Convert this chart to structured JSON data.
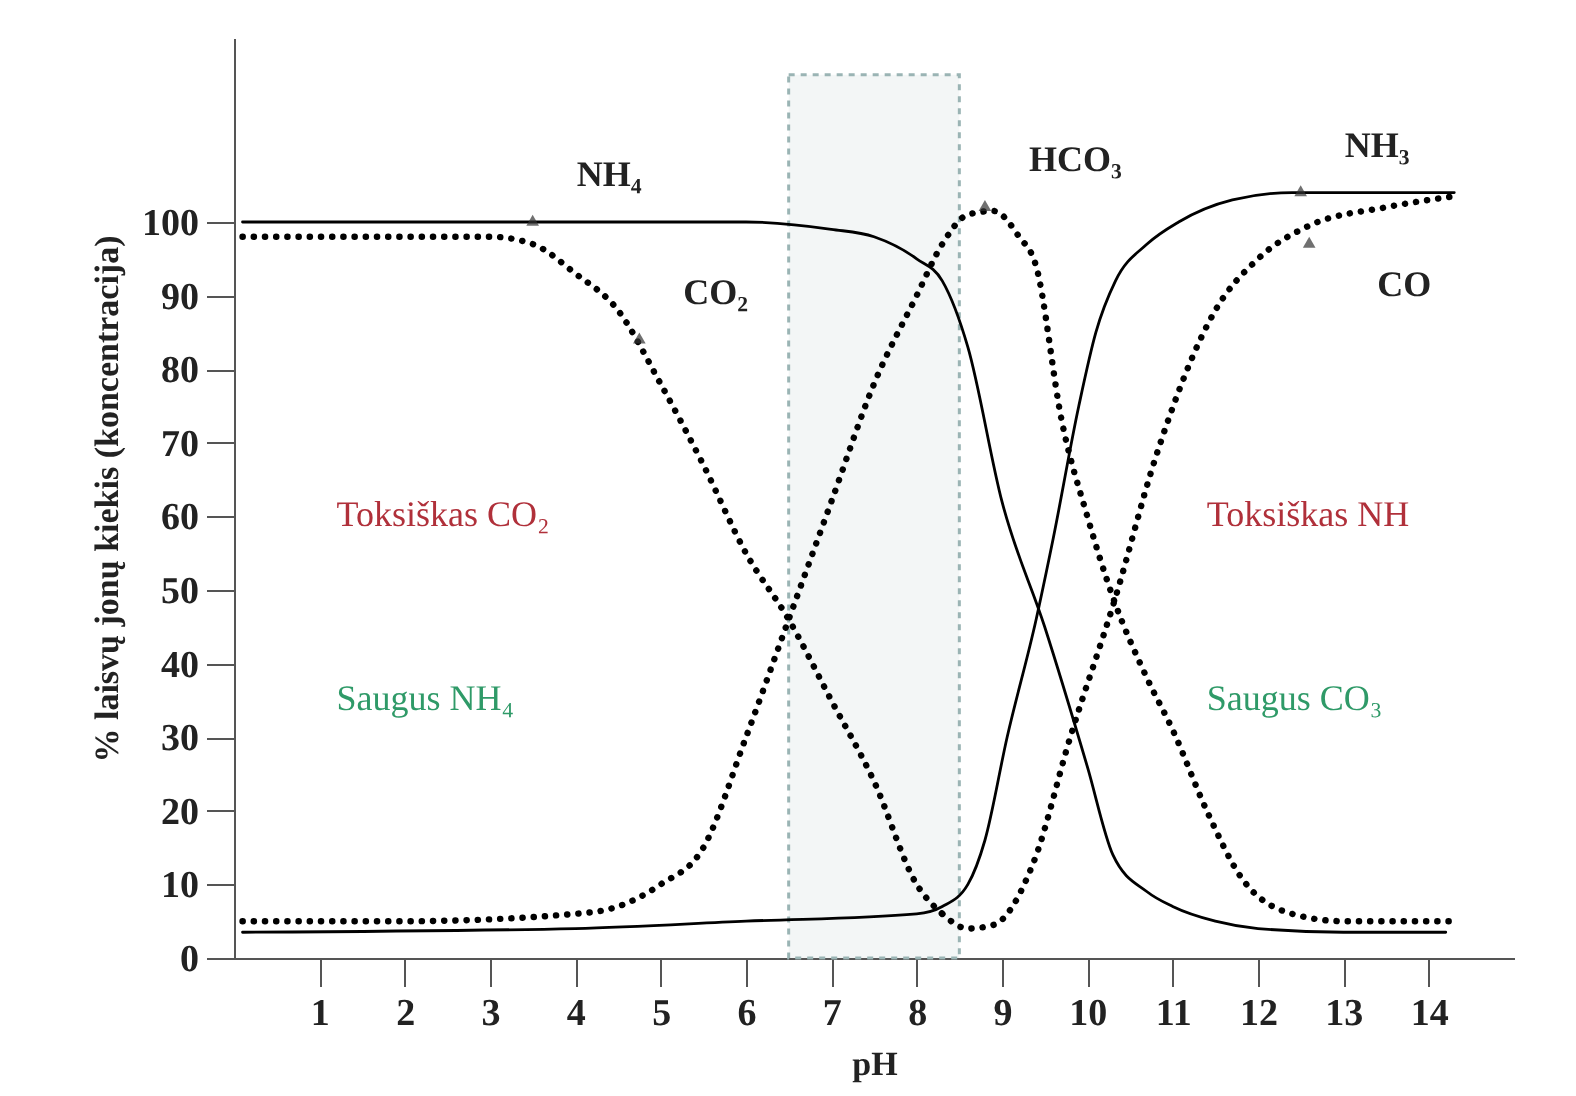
{
  "chart_data": {
    "type": "line",
    "xlabel": "pH",
    "ylabel": "% laisvų jonų kiekis (koncentracija)",
    "xlim": [
      0,
      15
    ],
    "ylim": [
      0,
      125
    ],
    "xticks": [
      1,
      2,
      3,
      4,
      5,
      6,
      7,
      8,
      9,
      10,
      11,
      12,
      13,
      14
    ],
    "yticks": [
      0,
      10,
      20,
      30,
      40,
      50,
      60,
      70,
      80,
      90,
      100
    ],
    "grid": false,
    "marker": "none",
    "series": [
      {
        "color": "#000000",
        "line_style": "solid",
        "x": [
          0.1,
          3,
          6,
          7,
          7.5,
          8,
          8.3,
          8.6,
          9,
          9.5,
          10,
          10.3,
          10.7,
          11,
          11.5,
          12,
          13,
          14.2
        ],
        "values": [
          100,
          100,
          100,
          99,
          98,
          95,
          92,
          83,
          62,
          45,
          26,
          14,
          9,
          7,
          5,
          4,
          3.5,
          3.5
        ]
      },
      {
        "color": "#000000",
        "line_style": "dotted",
        "x": [
          0.1,
          3,
          3.5,
          4,
          4.5,
          5,
          5.5,
          6,
          6.5,
          7,
          7.5,
          8,
          8.3
        ],
        "values": [
          98,
          98,
          97,
          93,
          88,
          78,
          67,
          55,
          46,
          35,
          24,
          10,
          6
        ]
      },
      {
        "color": "#000000",
        "line_style": "dotted",
        "x": [
          0.1,
          2,
          4,
          4.5,
          5,
          5.5,
          6,
          6.5,
          7,
          7.5,
          8,
          8.3,
          8.6,
          8.9,
          9.2,
          9.4,
          9.7,
          10,
          10.3,
          10.7,
          11,
          11.4,
          11.8,
          12.4,
          13,
          14.3
        ],
        "values": [
          5,
          5,
          6,
          7,
          10,
          15,
          30,
          46,
          62,
          78,
          90,
          97,
          101,
          101.5,
          98,
          94,
          73,
          60,
          49,
          38,
          31,
          20,
          11,
          6,
          5,
          5
        ]
      },
      {
        "color": "#000000",
        "line_style": "solid",
        "x": [
          0.1,
          4,
          6,
          8,
          8.3,
          8.6,
          8.8,
          9.06,
          9.4,
          9.6,
          9.9,
          10.1,
          10.33,
          10.7,
          11.07,
          11.7,
          12.4,
          14.3
        ],
        "values": [
          3.5,
          4,
          5,
          6,
          7,
          10,
          16,
          30,
          46,
          57,
          75,
          85,
          92,
          97,
          100,
          103,
          104,
          104
        ]
      },
      {
        "color": "#000000",
        "line_style": "dotted",
        "x": [
          8.3,
          8.6,
          8.9,
          9.37,
          9.8,
          10.33,
          10.8,
          11.5,
          12,
          12.6,
          13.5,
          14.3
        ],
        "values": [
          6,
          4,
          4.5,
          13,
          30,
          49,
          68,
          88,
          95,
          99.5,
          102,
          103.5
        ]
      }
    ],
    "bands": [
      {
        "axis": "x",
        "from": 6.5,
        "to": 8.5,
        "color": "#9ab4b4"
      }
    ],
    "annotations": [
      {
        "text": "NH₄",
        "x": 3.5,
        "y": 100
      },
      {
        "text": "CO₂",
        "x": 4.75,
        "y": 84
      },
      {
        "text": "HCO₃",
        "x": 8.8,
        "y": 102
      },
      {
        "text": "NH₃",
        "x": 12.5,
        "y": 104
      },
      {
        "text": "CO",
        "x": 12.6,
        "y": 97
      },
      "Toksiškas CO₂",
      "Saugus NH₄",
      "Toksiškas NH",
      "Saugus CO₃"
    ]
  }
}
